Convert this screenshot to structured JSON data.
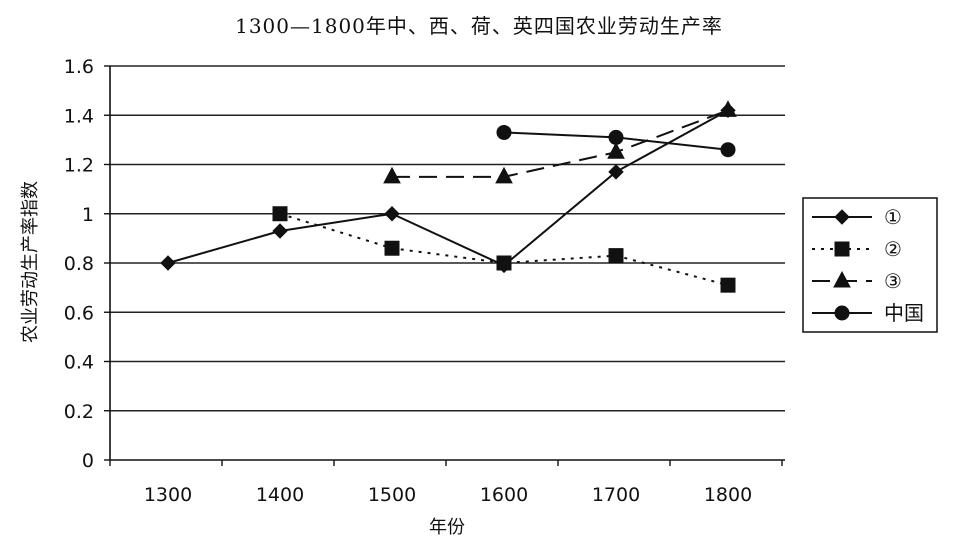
{
  "chart_data": {
    "type": "line",
    "title": "1300—1800年中、西、荷、英四国农业劳动生产率",
    "xlabel": "年份",
    "ylabel": "农业劳动生产率指数",
    "categories": [
      "1300",
      "1400",
      "1500",
      "1600",
      "1700",
      "1800"
    ],
    "yticks": [
      "0",
      "0.2",
      "0.4",
      "0.6",
      "0.8",
      "1",
      "1.2",
      "1.4",
      "1.6"
    ],
    "ylim": [
      0,
      1.6
    ],
    "grid": "horizontal",
    "legend_position": "right",
    "series": [
      {
        "name": "①",
        "marker": "diamond",
        "line": "solid",
        "color": "#111111",
        "values": [
          0.8,
          0.93,
          1.0,
          0.79,
          1.17,
          1.42
        ]
      },
      {
        "name": "②",
        "marker": "square",
        "line": "dotted",
        "color": "#111111",
        "values": [
          null,
          1.0,
          0.86,
          0.8,
          0.83,
          0.71
        ]
      },
      {
        "name": "③",
        "marker": "triangle",
        "line": "dashed",
        "color": "#111111",
        "values": [
          null,
          null,
          1.15,
          1.15,
          1.25,
          1.42
        ]
      },
      {
        "name": "中国",
        "marker": "circle",
        "line": "solid",
        "color": "#111111",
        "values": [
          null,
          null,
          null,
          1.33,
          1.31,
          1.26
        ]
      }
    ]
  }
}
